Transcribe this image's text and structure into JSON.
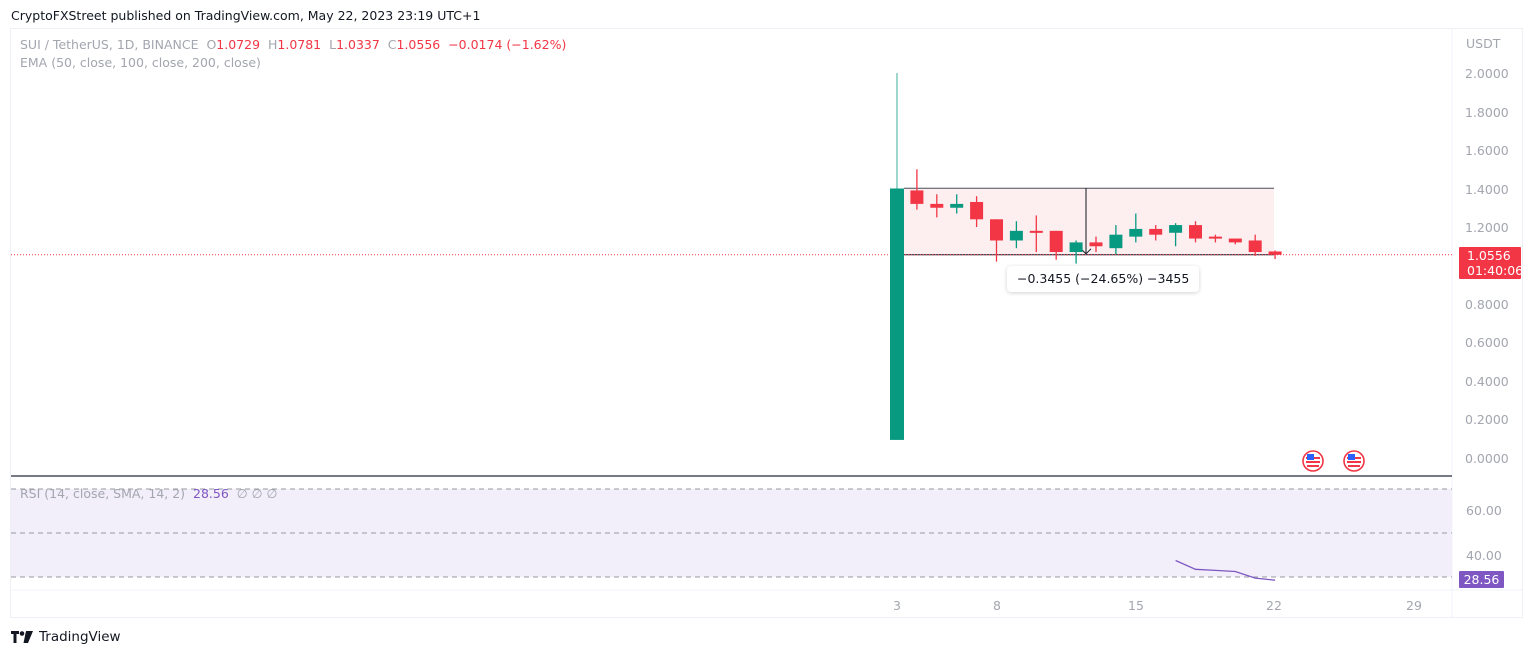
{
  "header": {
    "publisher_text": "CryptoFXStreet published on TradingView.com, May 22, 2023 23:19 UTC+1"
  },
  "legend": {
    "symbol": "SUI / TetherUS, 1D, BINANCE",
    "open_label": "O",
    "open": "1.0729",
    "high_label": "H",
    "high": "1.0781",
    "low_label": "L",
    "low": "1.0337",
    "close_label": "C",
    "close": "1.0556",
    "change": "−0.0174 (−1.62%)",
    "ema": "EMA (50, close, 100, close, 200, close)"
  },
  "price_axis": {
    "currency": "USDT",
    "ticks": [
      "2.0000",
      "1.8000",
      "1.6000",
      "1.4000",
      "1.2000",
      "0.8000",
      "0.6000",
      "0.4000",
      "0.2000",
      "0.0000"
    ],
    "last_price": "1.0556",
    "countdown": "01:40:06"
  },
  "measure": {
    "label": "−0.3455 (−24.65%) −3455"
  },
  "rsi": {
    "legend": "RSI (14, close, SMA, 14, 2)",
    "value": "28.56",
    "extra": "∅  ∅  ∅",
    "ticks": [
      "60.00",
      "40.00"
    ],
    "last_value": "28.56"
  },
  "time_axis": {
    "ticks": [
      "3",
      "8",
      "15",
      "22",
      "29"
    ]
  },
  "footer": {
    "brand": "TradingView"
  },
  "colors": {
    "up": "#089981",
    "down": "#f23645",
    "rsi": "#7e57c2",
    "range_fill": "#fdeef0"
  },
  "chart_data": {
    "type": "candlestick",
    "title": "SUI / TetherUS, 1D, BINANCE",
    "xlabel": "",
    "ylabel": "USDT",
    "ylim": [
      0,
      2.0
    ],
    "grid": false,
    "categories": [
      "May 3",
      "May 4",
      "May 5",
      "May 6",
      "May 7",
      "May 8",
      "May 9",
      "May 10",
      "May 11",
      "May 12",
      "May 13",
      "May 14",
      "May 15",
      "May 16",
      "May 17",
      "May 18",
      "May 19",
      "May 20",
      "May 21",
      "May 22"
    ],
    "series": [
      {
        "name": "open",
        "values": [
          0.094,
          1.39,
          1.32,
          1.3,
          1.33,
          1.24,
          1.13,
          1.18,
          1.18,
          1.07,
          1.12,
          1.09,
          1.15,
          1.19,
          1.17,
          1.21,
          1.15,
          1.14,
          1.13,
          1.0729
        ]
      },
      {
        "name": "high",
        "values": [
          2.0,
          1.5,
          1.37,
          1.37,
          1.36,
          1.24,
          1.23,
          1.26,
          1.18,
          1.13,
          1.15,
          1.21,
          1.27,
          1.21,
          1.22,
          1.23,
          1.16,
          1.14,
          1.16,
          1.0781
        ]
      },
      {
        "name": "low",
        "values": [
          0.094,
          1.29,
          1.25,
          1.27,
          1.2,
          1.02,
          1.09,
          1.07,
          1.03,
          1.01,
          1.07,
          1.06,
          1.12,
          1.13,
          1.1,
          1.12,
          1.12,
          1.11,
          1.05,
          1.0337
        ]
      },
      {
        "name": "close",
        "values": [
          1.4,
          1.32,
          1.3,
          1.32,
          1.24,
          1.13,
          1.18,
          1.17,
          1.07,
          1.12,
          1.1,
          1.16,
          1.19,
          1.16,
          1.21,
          1.14,
          1.14,
          1.12,
          1.07,
          1.0556
        ]
      }
    ],
    "rsi": {
      "name": "RSI (14, close, SMA, 14, 2)",
      "x": [
        "May 17",
        "May 18",
        "May 19",
        "May 20",
        "May 21",
        "May 22"
      ],
      "values": [
        37.5,
        33.5,
        33.0,
        32.5,
        29.5,
        28.56
      ],
      "levels": [
        70,
        50,
        30
      ],
      "ylim": [
        20,
        75
      ]
    },
    "annotations": [
      {
        "type": "range_measure",
        "from_price": 1.4011,
        "to_price": 1.0556,
        "label": "−0.3455 (−24.65%) −3455"
      },
      {
        "type": "last_price_line",
        "price": 1.0556,
        "countdown": "01:40:06"
      },
      {
        "type": "event_flags",
        "count": 2,
        "icon": "us-flag"
      }
    ]
  }
}
